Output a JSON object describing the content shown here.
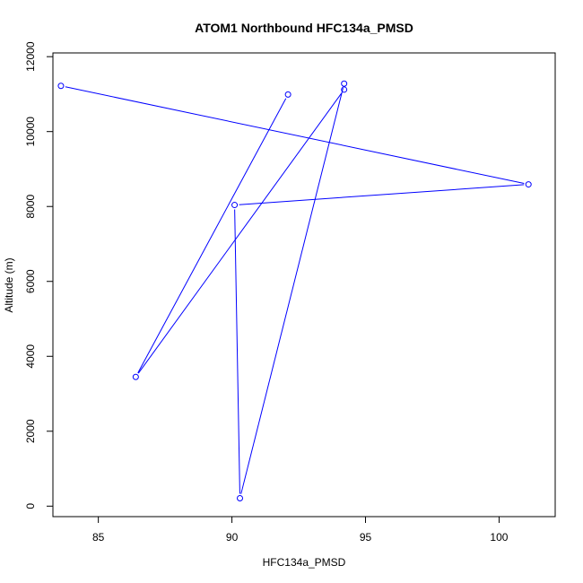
{
  "chart_data": {
    "type": "line",
    "title": "ATOM1 Northbound HFC134a_PMSD",
    "xlabel": "HFC134a_PMSD",
    "ylabel": "Altitude (m)",
    "xlim": [
      83.3,
      102.1
    ],
    "ylim": [
      -280,
      12100
    ],
    "xticks": [
      85,
      90,
      95,
      100
    ],
    "yticks": [
      0,
      2000,
      4000,
      6000,
      8000,
      10000,
      12000
    ],
    "grid": false,
    "legend": "none",
    "series": [
      {
        "color": "#0000FF",
        "marker": "open-circle",
        "points": [
          {
            "x": 83.6,
            "y": 11220
          },
          {
            "x": 101.1,
            "y": 8590
          },
          {
            "x": 90.1,
            "y": 8040
          },
          {
            "x": 90.3,
            "y": 210
          },
          {
            "x": 94.2,
            "y": 11280
          },
          {
            "x": 94.2,
            "y": 11120
          },
          {
            "x": 86.4,
            "y": 3450
          },
          {
            "x": 92.1,
            "y": 10990
          }
        ]
      }
    ]
  }
}
